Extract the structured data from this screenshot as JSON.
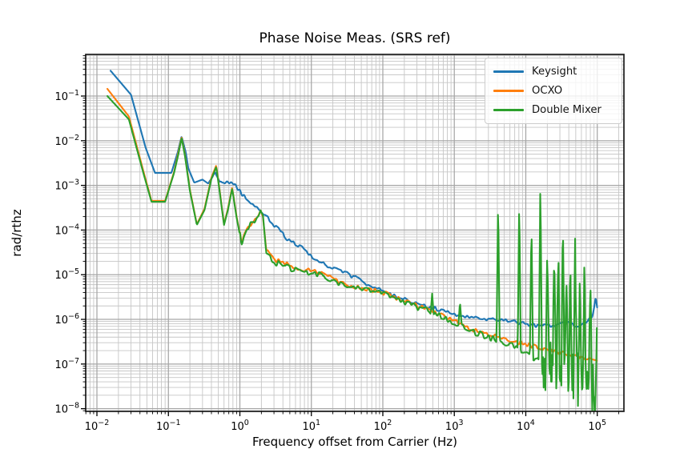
{
  "chart_data": {
    "type": "line",
    "title": "Phase Noise Meas. (SRS ref)",
    "xlabel": "Frequency offset from Carrier (Hz)",
    "ylabel": "rad/rthz",
    "xscale": "log",
    "yscale": "log",
    "grid": "both",
    "legend_position": "upper right",
    "xlim_log": [
      -2.157,
      5.373
    ],
    "ylim_log": [
      -8.06,
      -0.068
    ],
    "xtick_exponents": [
      -2,
      -1,
      0,
      1,
      2,
      3,
      4,
      5
    ],
    "ytick_exponents": [
      -1,
      -2,
      -3,
      -4,
      -5,
      -6,
      -7,
      -8
    ],
    "colors": {
      "grid_major": "#a6a6a6",
      "grid_minor": "#c6c6c6",
      "spine": "#1a1a1a",
      "tick": "#000000",
      "text": "#000000"
    },
    "series": [
      {
        "name": "Keysight",
        "color": "#1f77b4",
        "noise": {
          "f_start": 0.4,
          "amp": 0.045
        },
        "points": [
          [
            0.0155,
            0.37
          ],
          [
            0.03,
            0.107
          ],
          [
            0.048,
            0.007
          ],
          [
            0.065,
            0.0019
          ],
          [
            0.11,
            0.0019
          ],
          [
            0.135,
            0.0055
          ],
          [
            0.153,
            0.0125
          ],
          [
            0.175,
            0.0055
          ],
          [
            0.19,
            0.0024
          ],
          [
            0.23,
            0.00115
          ],
          [
            0.3,
            0.00135
          ],
          [
            0.36,
            0.0011
          ],
          [
            0.45,
            0.0019
          ],
          [
            0.52,
            0.00112
          ],
          [
            0.7,
            0.00118
          ],
          [
            0.85,
            0.001
          ],
          [
            1.2,
            0.00052
          ],
          [
            1.9,
            0.00028
          ],
          [
            3,
            0.00013
          ],
          [
            4.5,
            6.6e-05
          ],
          [
            7,
            4.2e-05
          ],
          [
            11,
            2.3e-05
          ],
          [
            18,
            1.45e-05
          ],
          [
            29,
            1.15e-05
          ],
          [
            50,
            7.2e-06
          ],
          [
            80,
            5e-06
          ],
          [
            150,
            3.3e-06
          ],
          [
            300,
            2.3e-06
          ],
          [
            500,
            1.8e-06
          ],
          [
            1000,
            1.3e-06
          ],
          [
            2000,
            1.05e-06
          ],
          [
            4000,
            1e-06
          ],
          [
            8000,
            8.5e-07
          ],
          [
            15000,
            7e-07
          ],
          [
            25000,
            7.5e-07
          ],
          [
            40000,
            8e-07
          ],
          [
            55000,
            7e-07
          ],
          [
            70000,
            9e-07
          ],
          [
            85000,
            1.2e-06
          ],
          [
            95000,
            3e-06
          ],
          [
            100000,
            1.8e-06
          ]
        ]
      },
      {
        "name": "OCXO",
        "color": "#ff7f0e",
        "noise": {
          "f_start": 1.0,
          "amp": 0.05
        },
        "points": [
          [
            0.014,
            0.145
          ],
          [
            0.028,
            0.035
          ],
          [
            0.045,
            0.002
          ],
          [
            0.058,
            0.00045
          ],
          [
            0.09,
            0.00045
          ],
          [
            0.12,
            0.002
          ],
          [
            0.138,
            0.0055
          ],
          [
            0.153,
            0.012
          ],
          [
            0.17,
            0.005
          ],
          [
            0.2,
            0.0008
          ],
          [
            0.25,
            0.000135
          ],
          [
            0.32,
            0.0003
          ],
          [
            0.4,
            0.0015
          ],
          [
            0.467,
            0.0028
          ],
          [
            0.52,
            0.0008
          ],
          [
            0.6,
            0.000135
          ],
          [
            0.68,
            0.0003
          ],
          [
            0.78,
            0.0009
          ],
          [
            0.9,
            0.0002
          ],
          [
            1.05,
            5.5e-05
          ],
          [
            1.3,
            0.00012
          ],
          [
            1.6,
            0.00015
          ],
          [
            1.8,
            0.00021
          ],
          [
            1.95,
            0.0003
          ],
          [
            2.1,
            0.00022
          ],
          [
            2.35,
            3.6e-05
          ],
          [
            3,
            2.2e-05
          ],
          [
            5,
            1.6e-05
          ],
          [
            8,
            1.3e-05
          ],
          [
            15,
            1.05e-05
          ],
          [
            25,
            6.5e-06
          ],
          [
            50,
            5e-06
          ],
          [
            100,
            4e-06
          ],
          [
            200,
            2.6e-06
          ],
          [
            400,
            1.7e-06
          ],
          [
            800,
            1.1e-06
          ],
          [
            1500,
            6.5e-07
          ],
          [
            3000,
            4.5e-07
          ],
          [
            6000,
            3.4e-07
          ],
          [
            12000,
            2.6e-07
          ],
          [
            25000,
            1.9e-07
          ],
          [
            50000,
            1.5e-07
          ],
          [
            100000,
            1.2e-07
          ]
        ]
      },
      {
        "name": "Double Mixer",
        "color": "#2ca02c",
        "noise": {
          "f_start": 1.0,
          "amp": 0.07
        },
        "hf_noise": {
          "f_start": 17000,
          "amp_decades": 0.65
        },
        "points": [
          [
            0.014,
            0.1
          ],
          [
            0.028,
            0.03
          ],
          [
            0.045,
            0.0018
          ],
          [
            0.058,
            0.00043
          ],
          [
            0.09,
            0.00043
          ],
          [
            0.12,
            0.0019
          ],
          [
            0.138,
            0.005
          ],
          [
            0.153,
            0.0115
          ],
          [
            0.17,
            0.0047
          ],
          [
            0.2,
            0.00075
          ],
          [
            0.25,
            0.00013
          ],
          [
            0.32,
            0.00028
          ],
          [
            0.4,
            0.0014
          ],
          [
            0.467,
            0.0026
          ],
          [
            0.52,
            0.00075
          ],
          [
            0.6,
            0.00013
          ],
          [
            0.68,
            0.00028
          ],
          [
            0.78,
            0.00085
          ],
          [
            0.9,
            0.00019
          ],
          [
            1.05,
            5.2e-05
          ],
          [
            1.3,
            0.000115
          ],
          [
            1.6,
            0.00016
          ],
          [
            1.8,
            0.00022
          ],
          [
            1.95,
            0.00032
          ],
          [
            2.1,
            0.00024
          ],
          [
            2.35,
            3.3e-05
          ],
          [
            3,
            1.9e-05
          ],
          [
            5,
            1.4e-05
          ],
          [
            8,
            1.15e-05
          ],
          [
            15,
            9.5e-06
          ],
          [
            25,
            6e-06
          ],
          [
            50,
            4.6e-06
          ],
          [
            100,
            3.8e-06
          ],
          [
            200,
            2.5e-06
          ],
          [
            400,
            1.6e-06
          ],
          [
            800,
            1e-06
          ],
          [
            1500,
            6e-07
          ],
          [
            3000,
            4e-07
          ],
          [
            6000,
            2.8e-07
          ],
          [
            10000,
            1.8e-07
          ],
          [
            15000,
            1.2e-07
          ],
          [
            20000,
            9e-08
          ],
          [
            30000,
            6e-08
          ],
          [
            50000,
            4e-08
          ],
          [
            70000,
            3e-08
          ],
          [
            100000,
            2e-08
          ]
        ],
        "spurs": [
          [
            490,
            3.8e-06
          ],
          [
            1200,
            2.5e-06
          ],
          [
            4100,
            0.00054
          ],
          [
            8100,
            0.00053
          ],
          [
            12000,
            0.00016
          ],
          [
            16000,
            0.00155
          ],
          [
            20000,
            4.2e-05
          ],
          [
            25000,
            3.9e-05
          ],
          [
            28500,
            3.9e-05
          ],
          [
            33000,
            0.00021
          ],
          [
            37000,
            9e-06
          ],
          [
            42000,
            2e-05
          ],
          [
            49000,
            6.6e-05
          ],
          [
            57000,
            1e-05
          ],
          [
            66000,
            2.3e-05
          ],
          [
            80000,
            8e-06
          ],
          [
            100000,
            3.3e-06
          ]
        ]
      }
    ]
  }
}
